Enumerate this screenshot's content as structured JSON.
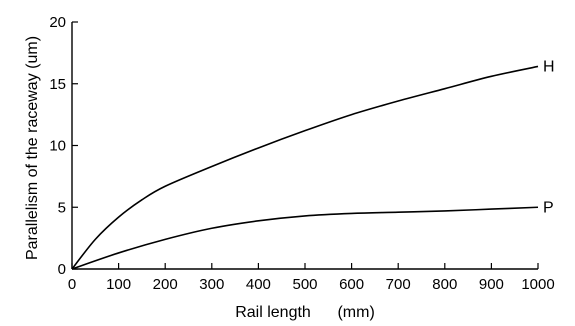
{
  "chart_data": {
    "type": "line",
    "title": "",
    "xlabel": "Rail length      (mm)",
    "ylabel": "Parallelism of the raceway (um)",
    "xlim": [
      0,
      1000
    ],
    "ylim": [
      0,
      20
    ],
    "x_ticks": [
      0,
      100,
      200,
      300,
      400,
      500,
      600,
      700,
      800,
      900,
      1000
    ],
    "y_ticks": [
      0,
      5,
      10,
      15,
      20
    ],
    "grid": false,
    "legend": "none",
    "series": [
      {
        "name": "H",
        "x": [
          0,
          50,
          100,
          150,
          200,
          300,
          400,
          500,
          600,
          700,
          800,
          900,
          1000
        ],
        "y": [
          0,
          2.4,
          4.2,
          5.6,
          6.7,
          8.3,
          9.8,
          11.2,
          12.5,
          13.6,
          14.6,
          15.6,
          16.4
        ]
      },
      {
        "name": "P",
        "x": [
          0,
          100,
          200,
          300,
          400,
          500,
          600,
          700,
          800,
          900,
          1000
        ],
        "y": [
          0,
          1.3,
          2.4,
          3.3,
          3.9,
          4.3,
          4.5,
          4.6,
          4.7,
          4.85,
          5.0
        ]
      }
    ]
  }
}
